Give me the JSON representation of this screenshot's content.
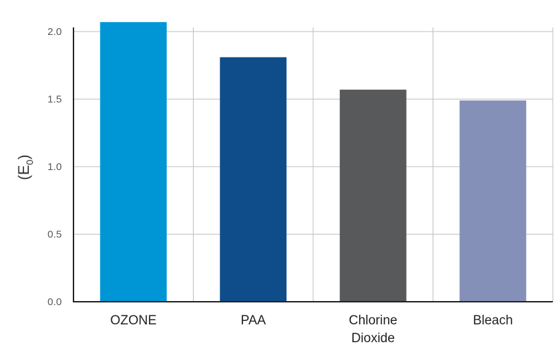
{
  "chart_data": {
    "type": "bar",
    "categories": [
      "OZONE",
      "PAA",
      "Chlorine Dioxide",
      "Bleach"
    ],
    "category_lines": [
      [
        "OZONE"
      ],
      [
        "PAA"
      ],
      [
        "Chlorine",
        "Dioxide"
      ],
      [
        "Bleach"
      ]
    ],
    "values": [
      2.07,
      1.81,
      1.57,
      1.49
    ],
    "bar_colors": [
      "#0096d6",
      "#0e4d89",
      "#58595b",
      "#8590b8"
    ],
    "ylabel_main": "(E",
    "ylabel_sub": "0",
    "ylabel_close": ")",
    "ylim": [
      0,
      2.0
    ],
    "yticks": [
      "0.0",
      "0.5",
      "1.0",
      "1.5",
      "2.0"
    ],
    "grid": true,
    "legend": "none"
  }
}
